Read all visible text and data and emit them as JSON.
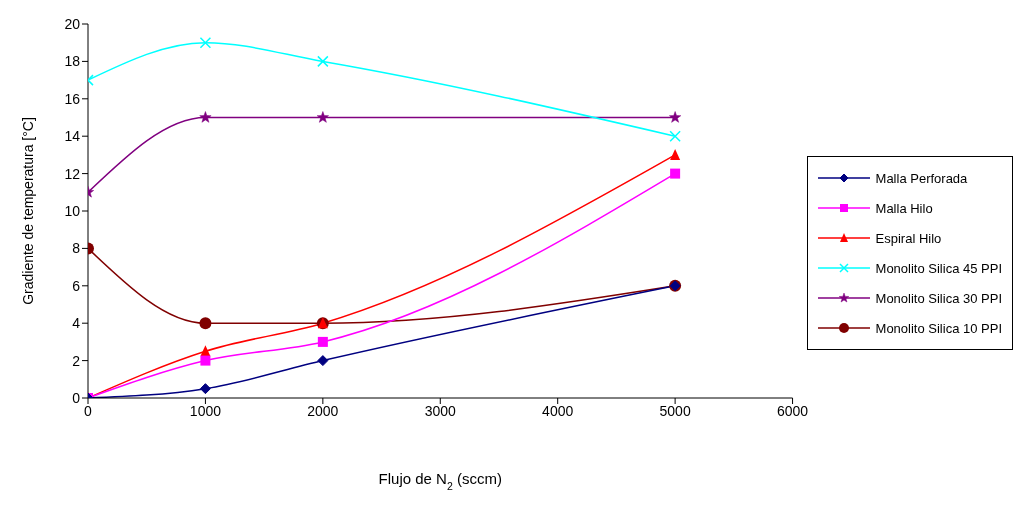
{
  "chart_data": {
    "type": "line",
    "xlabel": "Flujo de N$_{2}$ (sccm)",
    "ylabel": "Gradiente de temperatura [°C]",
    "x": [
      0,
      1000,
      2000,
      5000
    ],
    "series": [
      {
        "name": "Malla Perforada",
        "color": "#000080",
        "marker": "diamond",
        "values": [
          0,
          0.5,
          2,
          6
        ]
      },
      {
        "name": "Malla Hilo",
        "color": "#ff00ff",
        "marker": "square",
        "values": [
          0,
          2,
          3,
          12
        ]
      },
      {
        "name": "Espiral Hilo",
        "color": "#ff0000",
        "marker": "triangle",
        "values": [
          0,
          2.5,
          4,
          13
        ]
      },
      {
        "name": "Monolito Silica 45 PPI",
        "color": "#00ffff",
        "marker": "cross",
        "values": [
          17,
          19,
          18,
          14
        ]
      },
      {
        "name": "Monolito Silica 30 PPI",
        "color": "#800080",
        "marker": "star",
        "values": [
          11,
          15,
          15,
          15
        ]
      },
      {
        "name": "Monolito Silica 10 PPI",
        "color": "#800000",
        "marker": "circle",
        "values": [
          8,
          4,
          4,
          6
        ]
      }
    ],
    "xlim": [
      0,
      6000
    ],
    "xticks": [
      0,
      1000,
      2000,
      3000,
      4000,
      5000,
      6000
    ],
    "ylim": [
      0,
      20
    ],
    "yticks": [
      0,
      2,
      4,
      6,
      8,
      10,
      12,
      14,
      16,
      18,
      20
    ],
    "grid": false,
    "legend": "right",
    "line_style": "solid"
  }
}
